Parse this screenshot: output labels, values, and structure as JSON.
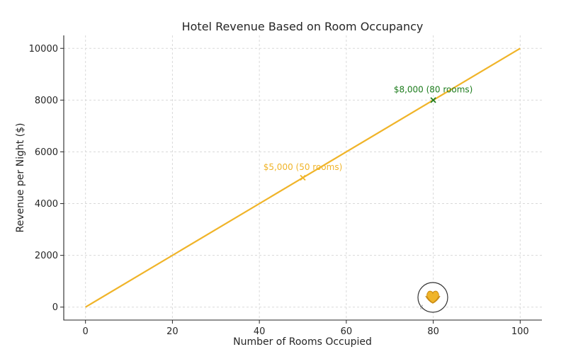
{
  "chart_data": {
    "type": "line",
    "title": "Hotel Revenue Based on Room Occupancy",
    "xlabel": "Number of Rooms Occupied",
    "ylabel": "Revenue per Night ($)",
    "xlim": [
      -5,
      105
    ],
    "ylim": [
      -500,
      10500
    ],
    "xticks": [
      0,
      20,
      40,
      60,
      80,
      100
    ],
    "yticks": [
      0,
      2000,
      4000,
      6000,
      8000,
      10000
    ],
    "grid": true,
    "series": [
      {
        "x": [
          0,
          100
        ],
        "y": [
          0,
          10000
        ],
        "color": "#f0b429"
      }
    ],
    "markers": [
      {
        "x": 50,
        "y": 5000,
        "label": "$5,000 (50 rooms)",
        "color": "#f0b429"
      },
      {
        "x": 80,
        "y": 8000,
        "label": "$8,000 (80 rooms)",
        "color": "#1e7d1e"
      }
    ]
  },
  "badge": {
    "icon": "heart-hands-icon",
    "color": "#f0b429"
  }
}
